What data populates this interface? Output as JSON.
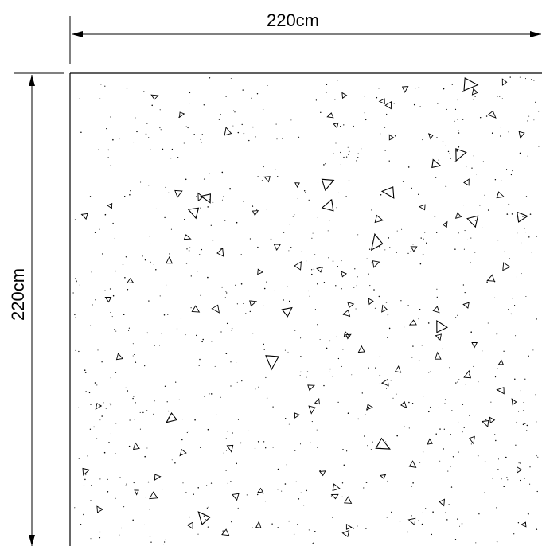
{
  "dimensions": {
    "width_label": "220cm",
    "height_label": "220cm"
  },
  "colors": {
    "line": "#000000",
    "background": "#ffffff"
  },
  "hatch": {
    "pattern": "concrete",
    "symbols": [
      "triangle",
      "dot"
    ]
  }
}
